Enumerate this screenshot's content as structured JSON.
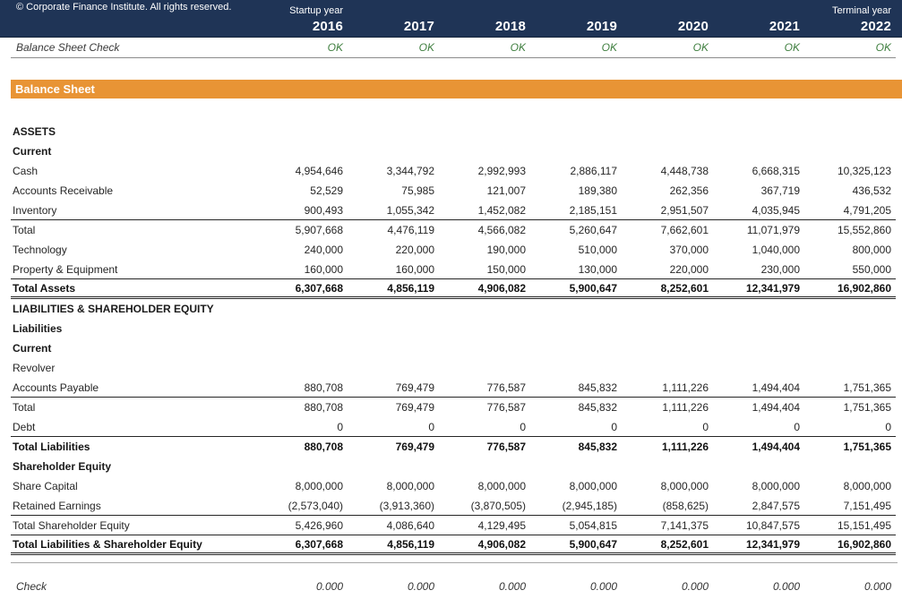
{
  "header": {
    "copyright": "© Corporate Finance Institute. All rights reserved.",
    "startup_year_label": "Startup year",
    "terminal_year_label": "Terminal year",
    "years": [
      "2016",
      "2017",
      "2018",
      "2019",
      "2020",
      "2021",
      "2022"
    ]
  },
  "balance_check": {
    "label": "Balance Sheet Check",
    "values": [
      "OK",
      "OK",
      "OK",
      "OK",
      "OK",
      "OK",
      "OK"
    ]
  },
  "banner": {
    "title": "Balance Sheet"
  },
  "table": {
    "rows": [
      {
        "label": "ASSETS",
        "style": "section",
        "values": []
      },
      {
        "label": "Current",
        "style": "section",
        "values": []
      },
      {
        "label": "Cash",
        "style": "plain",
        "values": [
          "4,954,646",
          "3,344,792",
          "2,992,993",
          "2,886,117",
          "4,448,738",
          "6,668,315",
          "10,325,123"
        ]
      },
      {
        "label": "Accounts Receivable",
        "style": "plain",
        "values": [
          "52,529",
          "75,985",
          "121,007",
          "189,380",
          "262,356",
          "367,719",
          "436,532"
        ]
      },
      {
        "label": "Inventory",
        "style": "plain bb",
        "values": [
          "900,493",
          "1,055,342",
          "1,452,082",
          "2,185,151",
          "2,951,507",
          "4,035,945",
          "4,791,205"
        ]
      },
      {
        "label": "Total",
        "style": "plain",
        "values": [
          "5,907,668",
          "4,476,119",
          "4,566,082",
          "5,260,647",
          "7,662,601",
          "11,071,979",
          "15,552,860"
        ]
      },
      {
        "label": "Technology",
        "style": "plain",
        "values": [
          "240,000",
          "220,000",
          "190,000",
          "510,000",
          "370,000",
          "1,040,000",
          "800,000"
        ]
      },
      {
        "label": "Property & Equipment",
        "style": "plain bb",
        "values": [
          "160,000",
          "160,000",
          "150,000",
          "130,000",
          "220,000",
          "230,000",
          "550,000"
        ]
      },
      {
        "label": "Total Assets",
        "style": "bold dbb",
        "values": [
          "6,307,668",
          "4,856,119",
          "4,906,082",
          "5,900,647",
          "8,252,601",
          "12,341,979",
          "16,902,860"
        ]
      },
      {
        "label": "LIABILITIES & SHAREHOLDER EQUITY",
        "style": "section",
        "values": []
      },
      {
        "label": "Liabilities",
        "style": "section",
        "values": []
      },
      {
        "label": "Current",
        "style": "section",
        "values": []
      },
      {
        "label": "Revolver",
        "style": "plain",
        "values": [
          "",
          "",
          "",
          "",
          "",
          "",
          ""
        ]
      },
      {
        "label": "Accounts Payable",
        "style": "plain bb",
        "values": [
          "880,708",
          "769,479",
          "776,587",
          "845,832",
          "1,111,226",
          "1,494,404",
          "1,751,365"
        ]
      },
      {
        "label": "Total",
        "style": "plain",
        "values": [
          "880,708",
          "769,479",
          "776,587",
          "845,832",
          "1,111,226",
          "1,494,404",
          "1,751,365"
        ]
      },
      {
        "label": "Debt",
        "style": "plain bb",
        "values": [
          "0",
          "0",
          "0",
          "0",
          "0",
          "0",
          "0"
        ]
      },
      {
        "label": "Total Liabilities",
        "style": "bold",
        "values": [
          "880,708",
          "769,479",
          "776,587",
          "845,832",
          "1,111,226",
          "1,494,404",
          "1,751,365"
        ]
      },
      {
        "label": "Shareholder Equity",
        "style": "section",
        "values": []
      },
      {
        "label": "Share Capital",
        "style": "plain",
        "values": [
          "8,000,000",
          "8,000,000",
          "8,000,000",
          "8,000,000",
          "8,000,000",
          "8,000,000",
          "8,000,000"
        ]
      },
      {
        "label": "Retained Earnings",
        "style": "plain bb",
        "values": [
          "(2,573,040)",
          "(3,913,360)",
          "(3,870,505)",
          "(2,945,185)",
          "(858,625)",
          "2,847,575",
          "7,151,495"
        ]
      },
      {
        "label": "Total Shareholder Equity",
        "style": "plain bb",
        "values": [
          "5,426,960",
          "4,086,640",
          "4,129,495",
          "5,054,815",
          "7,141,375",
          "10,847,575",
          "15,151,495"
        ]
      },
      {
        "label": "Total Liabilities & Shareholder Equity",
        "style": "bold dbb",
        "values": [
          "6,307,668",
          "4,856,119",
          "4,906,082",
          "5,900,647",
          "8,252,601",
          "12,341,979",
          "16,902,860"
        ]
      }
    ]
  },
  "bottom_check": {
    "label": "Check",
    "values": [
      "0.000",
      "0.000",
      "0.000",
      "0.000",
      "0.000",
      "0.000",
      "0.000"
    ]
  },
  "colors": {
    "navy": "#1F3456",
    "orange": "#E89435",
    "ok_green": "#3E7E3E"
  }
}
